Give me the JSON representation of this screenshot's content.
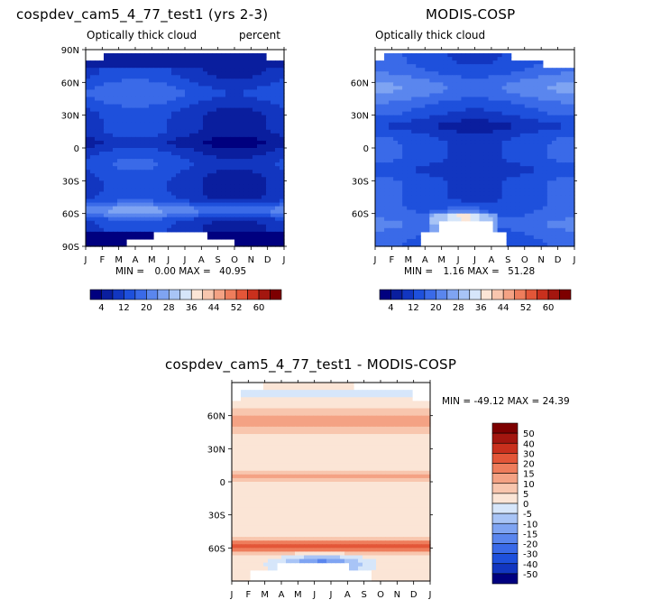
{
  "panels": [
    {
      "title": "cospdev_cam5_4_77_test1 (yrs 2-3)",
      "subtitle_left": "Optically thick cloud",
      "subtitle_right": "percent",
      "stats": {
        "min_label": "MIN =",
        "min": "0.00",
        "max_label": "MAX =",
        "max": "40.95"
      }
    },
    {
      "title": "MODIS-COSP",
      "subtitle_left": "Optically thick cloud",
      "subtitle_right": "",
      "stats": {
        "min_label": "MIN =",
        "min": "1.16",
        "max_label": "MAX =",
        "max": "51.28"
      }
    },
    {
      "title": "cospdev_cam5_4_77_test1 - MODIS-COSP",
      "subtitle_left": "",
      "subtitle_right": "",
      "stats_text": "MIN = -49.12 MAX =  24.39"
    }
  ],
  "chart_data": [
    {
      "type": "heatmap",
      "title": "cospdev_cam5_4_77_test1 (yrs 2-3)",
      "subtitle": "Optically thick cloud",
      "units": "percent",
      "x_tick_labels": [
        "J",
        "F",
        "M",
        "A",
        "M",
        "J",
        "J",
        "A",
        "S",
        "O",
        "N",
        "D",
        "J"
      ],
      "y_tick_labels": [
        "90N",
        "60N",
        "30N",
        "0",
        "30S",
        "60S",
        "90S"
      ],
      "y_ticks": [
        90,
        60,
        30,
        0,
        -30,
        -60,
        -90
      ],
      "ylim": [
        -90,
        90
      ],
      "colorbar": {
        "labels": [
          "4",
          "12",
          "20",
          "28",
          "36",
          "44",
          "52",
          "60"
        ],
        "levels": [
          0,
          4,
          8,
          12,
          16,
          20,
          24,
          28,
          32,
          36,
          40,
          44,
          48,
          52,
          56,
          60,
          64
        ],
        "colors": [
          "#00007f",
          "#0a1e9e",
          "#1236c0",
          "#1e50dc",
          "#3a6ae8",
          "#5a86ee",
          "#7fa4f2",
          "#a8c4f6",
          "#d6e6fa",
          "#fbe5d6",
          "#f8c6ae",
          "#f4a284",
          "#ee7d5c",
          "#e35638",
          "#c9301d",
          "#a3160f",
          "#7d0000"
        ]
      },
      "min": 0.0,
      "max": 40.95
    },
    {
      "type": "heatmap",
      "title": "MODIS-COSP",
      "subtitle": "Optically thick cloud",
      "x_tick_labels": [
        "J",
        "F",
        "M",
        "A",
        "M",
        "J",
        "J",
        "A",
        "S",
        "O",
        "N",
        "D",
        "J"
      ],
      "y_tick_labels": [
        "60N",
        "30N",
        "0",
        "30S",
        "60S"
      ],
      "y_ticks": [
        60,
        30,
        0,
        -30,
        -60
      ],
      "ylim": [
        -90,
        90
      ],
      "colorbar": {
        "labels": [
          "4",
          "12",
          "20",
          "28",
          "36",
          "44",
          "52",
          "60"
        ],
        "levels": [
          0,
          4,
          8,
          12,
          16,
          20,
          24,
          28,
          32,
          36,
          40,
          44,
          48,
          52,
          56,
          60,
          64
        ],
        "colors": [
          "#00007f",
          "#0a1e9e",
          "#1236c0",
          "#1e50dc",
          "#3a6ae8",
          "#5a86ee",
          "#7fa4f2",
          "#a8c4f6",
          "#d6e6fa",
          "#fbe5d6",
          "#f8c6ae",
          "#f4a284",
          "#ee7d5c",
          "#e35638",
          "#c9301d",
          "#a3160f",
          "#7d0000"
        ]
      },
      "min": 1.16,
      "max": 51.28
    },
    {
      "type": "heatmap",
      "title": "cospdev_cam5_4_77_test1 - MODIS-COSP",
      "x_tick_labels": [
        "J",
        "F",
        "M",
        "A",
        "M",
        "J",
        "J",
        "A",
        "S",
        "O",
        "N",
        "D",
        "J"
      ],
      "y_tick_labels": [
        "60N",
        "30N",
        "0",
        "30S",
        "60S"
      ],
      "y_ticks": [
        60,
        30,
        0,
        -30,
        -60
      ],
      "ylim": [
        -90,
        90
      ],
      "colorbar": {
        "labels": [
          "50",
          "40",
          "30",
          "20",
          "15",
          "10",
          "5",
          "0",
          "-5",
          "-10",
          "-15",
          "-20",
          "-30",
          "-40",
          "-50"
        ],
        "colors": [
          "#7d0000",
          "#a3160f",
          "#c9301d",
          "#e35638",
          "#ee7d5c",
          "#f4a284",
          "#f8c6ae",
          "#fbe5d6",
          "#d6e6fa",
          "#a8c4f6",
          "#7fa4f2",
          "#5a86ee",
          "#3a6ae8",
          "#1e50dc",
          "#1236c0",
          "#00007f"
        ]
      },
      "min": -49.12,
      "max": 24.39
    }
  ]
}
